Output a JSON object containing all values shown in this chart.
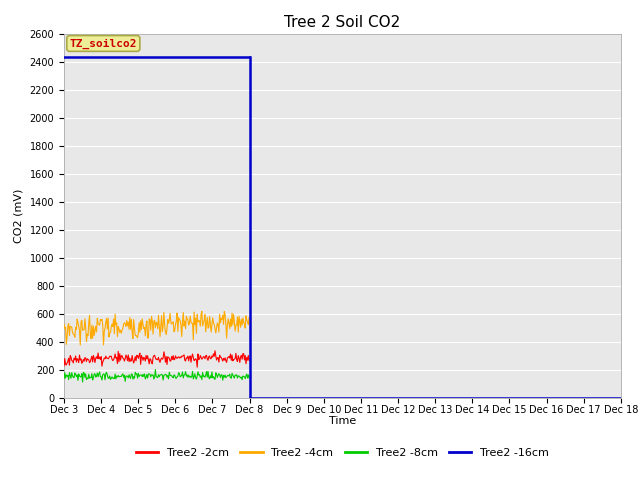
{
  "title": "Tree 2 Soil CO2",
  "ylabel": "CO2 (mV)",
  "xlabel": "Time",
  "ylim": [
    0,
    2600
  ],
  "yticks": [
    0,
    200,
    400,
    600,
    800,
    1000,
    1200,
    1400,
    1600,
    1800,
    2000,
    2200,
    2400,
    2600
  ],
  "xtick_labels": [
    "Dec 3",
    "Dec 4",
    "Dec 5",
    "Dec 6",
    "Dec 7",
    "Dec 8",
    "Dec 9",
    "Dec 10",
    "Dec 11",
    "Dec 12",
    "Dec 13",
    "Dec 14",
    "Dec 15",
    "Dec 16",
    "Dec 17",
    "Dec 18"
  ],
  "annotation_text": "TZ_soilco2",
  "annotation_bg_color": "#eeee99",
  "annotation_edge_color": "#aaaa44",
  "annotation_text_color": "#cc0000",
  "blue_level": 2430,
  "red_base": 270,
  "red_noise": 40,
  "orange_base": 490,
  "orange_noise": 45,
  "green_base": 160,
  "green_noise": 15,
  "active_days": 5,
  "total_days": 15,
  "background_color": "#e8e8e8",
  "figure_bg": "#ffffff",
  "grid_color": "#ffffff",
  "title_fontsize": 11,
  "axis_fontsize": 8,
  "tick_fontsize": 7,
  "legend_fontsize": 8,
  "line_colors": {
    "red": "#ff0000",
    "orange": "#ffaa00",
    "green": "#00cc00",
    "blue": "#0000cc"
  }
}
